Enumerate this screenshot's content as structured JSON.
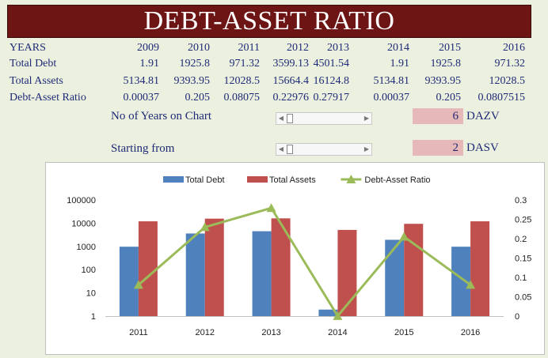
{
  "title": "DEBT-ASSET RATIO",
  "table": {
    "header_label": "YEARS",
    "years": [
      "2009",
      "2010",
      "2011",
      "2012",
      "2013",
      "2014",
      "2015",
      "2016"
    ],
    "rows": [
      {
        "label": "Total Debt",
        "values": [
          "1.91",
          "1925.8",
          "971.32",
          "3599.13",
          "4501.54",
          "1.91",
          "1925.8",
          "971.32"
        ]
      },
      {
        "label": "Total Assets",
        "values": [
          "5134.81",
          "9393.95",
          "12028.5",
          "15664.4",
          "16124.8",
          "5134.81",
          "9393.95",
          "12028.5"
        ]
      },
      {
        "label": "Debt-Asset Ratio",
        "values": [
          "0.00037",
          "0.205",
          "0.08075",
          "0.22976",
          "0.27917",
          "0.00037",
          "0.205",
          "0.0807515"
        ]
      }
    ]
  },
  "controls": {
    "years_on_chart": {
      "label": "No of Years on Chart",
      "value": "6",
      "code": "DAZV",
      "position": 0.0
    },
    "starting_from": {
      "label": "Starting from",
      "value": "2",
      "code": "DASV",
      "position": 0.0
    }
  },
  "chart_data": {
    "type": "bar",
    "categories": [
      "2011",
      "2012",
      "2013",
      "2014",
      "2015",
      "2016"
    ],
    "series": [
      {
        "name": "Total Debt",
        "type": "bar",
        "axis": "left",
        "color": "#4f81bd",
        "values": [
          971.32,
          3599.13,
          4501.54,
          1.91,
          1925.8,
          971.32
        ]
      },
      {
        "name": "Total Assets",
        "type": "bar",
        "axis": "left",
        "color": "#c0504d",
        "values": [
          12028.5,
          15664.4,
          16124.8,
          5134.81,
          9393.95,
          12028.5
        ]
      },
      {
        "name": "Debt-Asset Ratio",
        "type": "line",
        "axis": "right",
        "color": "#9bbb59",
        "values": [
          0.08075,
          0.22976,
          0.27917,
          0.00037,
          0.205,
          0.0807515
        ]
      }
    ],
    "y_left": {
      "scale": "log",
      "min": 1,
      "max": 100000,
      "ticks": [
        "1",
        "10",
        "100",
        "1000",
        "10000",
        "100000"
      ]
    },
    "y_right": {
      "scale": "linear",
      "min": 0,
      "max": 0.3,
      "ticks": [
        "0",
        "0.05",
        "0.1",
        "0.15",
        "0.2",
        "0.25",
        "0.3"
      ]
    },
    "legend_position": "top",
    "grid": false
  }
}
